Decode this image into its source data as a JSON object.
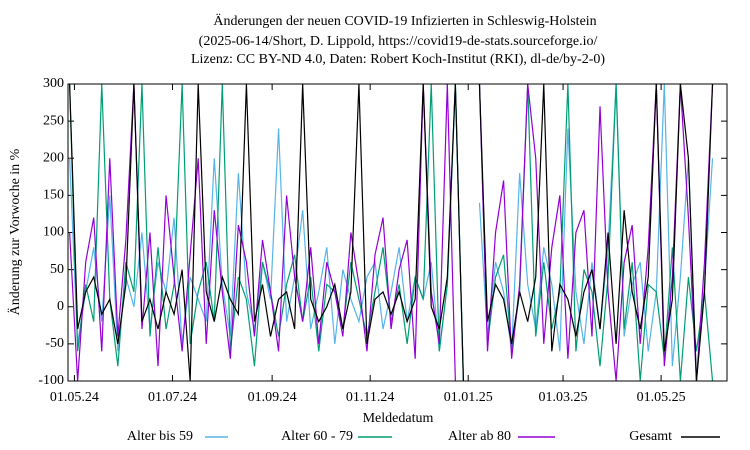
{
  "chart_data": {
    "type": "line",
    "title": [
      "Änderungen der neuen COVID-19 Infizierten in Schleswig-Holstein",
      "(2025-06-14/Short, D. Lippold, https://covid19-de-stats.sourceforge.io/",
      "Lizenz: CC BY-ND 4.0, Daten: Robert Koch-Institut (RKI), dl-de/by-2-0)"
    ],
    "xlabel": "Meldedatum",
    "ylabel": "Änderung zur Vorwoche in %",
    "xlim": [
      "2024-04-27",
      "2025-06-11"
    ],
    "xticks": [
      {
        "value": "2024-05-01",
        "label": "01.05.24"
      },
      {
        "value": "2024-07-01",
        "label": "01.07.24"
      },
      {
        "value": "2024-09-01",
        "label": "01.09.24"
      },
      {
        "value": "2024-11-01",
        "label": "01.11.24"
      },
      {
        "value": "2025-01-01",
        "label": "01.01.25"
      },
      {
        "value": "2025-03-01",
        "label": "01.03.25"
      },
      {
        "value": "2025-05-01",
        "label": "01.05.25"
      }
    ],
    "ylim": [
      -100,
      300
    ],
    "yticks": [
      -100,
      -50,
      0,
      50,
      100,
      150,
      200,
      250,
      300
    ],
    "x": [
      "2024-04-28",
      "2024-05-03",
      "2024-05-08",
      "2024-05-13",
      "2024-05-18",
      "2024-05-23",
      "2024-05-28",
      "2024-06-02",
      "2024-06-07",
      "2024-06-12",
      "2024-06-17",
      "2024-06-22",
      "2024-06-27",
      "2024-07-02",
      "2024-07-07",
      "2024-07-12",
      "2024-07-17",
      "2024-07-22",
      "2024-07-27",
      "2024-08-01",
      "2024-08-06",
      "2024-08-11",
      "2024-08-16",
      "2024-08-21",
      "2024-08-26",
      "2024-08-31",
      "2024-09-05",
      "2024-09-10",
      "2024-09-15",
      "2024-09-20",
      "2024-09-25",
      "2024-09-30",
      "2024-10-05",
      "2024-10-10",
      "2024-10-15",
      "2024-10-20",
      "2024-10-25",
      "2024-10-30",
      "2024-11-04",
      "2024-11-09",
      "2024-11-14",
      "2024-11-19",
      "2024-11-24",
      "2024-11-29",
      "2024-12-04",
      "2024-12-09",
      "2024-12-14",
      "2024-12-19",
      "2024-12-24",
      "2024-12-29",
      "2025-01-03",
      "2025-01-08",
      "2025-01-13",
      "2025-01-18",
      "2025-01-23",
      "2025-01-28",
      "2025-02-02",
      "2025-02-07",
      "2025-02-12",
      "2025-02-17",
      "2025-02-22",
      "2025-02-27",
      "2025-03-04",
      "2025-03-09",
      "2025-03-14",
      "2025-03-19",
      "2025-03-24",
      "2025-03-29",
      "2025-04-03",
      "2025-04-08",
      "2025-04-13",
      "2025-04-18",
      "2025-04-23",
      "2025-04-28",
      "2025-05-03",
      "2025-05-08",
      "2025-05-13",
      "2025-05-18",
      "2025-05-23",
      "2025-05-28",
      "2025-06-02"
    ],
    "series": [
      {
        "name": "Alter bis 59",
        "color": "#56b4e9",
        "values": [
          200,
          -50,
          20,
          80,
          -20,
          150,
          -60,
          40,
          0,
          100,
          -30,
          60,
          20,
          120,
          -50,
          40,
          10,
          -20,
          200,
          30,
          -40,
          180,
          20,
          -30,
          60,
          10,
          240,
          -20,
          40,
          130,
          -30,
          20,
          80,
          -50,
          50,
          10,
          -20,
          40,
          60,
          -30,
          20,
          80,
          -20,
          40,
          10,
          60,
          -60,
          30,
          300,
          -100,
          null,
          140,
          -40,
          60,
          20,
          -60,
          180,
          30,
          -30,
          80,
          30,
          -60,
          240,
          20,
          -50,
          60,
          -30,
          80,
          300,
          -40,
          30,
          60,
          -60,
          20,
          300,
          -80,
          40,
          200,
          -100,
          30,
          200
        ]
      },
      {
        "name": "Alter 60 - 79",
        "color": "#009e73",
        "values": [
          300,
          -60,
          30,
          -20,
          300,
          10,
          -80,
          60,
          20,
          300,
          -40,
          80,
          -30,
          30,
          300,
          -50,
          20,
          60,
          -20,
          300,
          -60,
          40,
          10,
          -80,
          60,
          20,
          -40,
          30,
          70,
          -20,
          40,
          -60,
          30,
          20,
          -30,
          60,
          10,
          -40,
          20,
          80,
          -20,
          30,
          -50,
          40,
          10,
          300,
          -60,
          30,
          300,
          -100,
          null,
          300,
          -50,
          40,
          70,
          -60,
          20,
          300,
          -40,
          60,
          -30,
          20,
          300,
          -60,
          50,
          20,
          -80,
          40,
          300,
          -30,
          60,
          -100,
          30,
          20,
          -70,
          80,
          -100,
          40,
          -60,
          20,
          -100
        ]
      },
      {
        "name": "Alter ab 80",
        "color": "#9400d3",
        "values": [
          100,
          -100,
          60,
          120,
          -60,
          200,
          -40,
          90,
          300,
          -30,
          100,
          -80,
          150,
          40,
          -60,
          70,
          200,
          -50,
          130,
          20,
          -70,
          110,
          60,
          -40,
          90,
          20,
          -60,
          150,
          40,
          -20,
          80,
          -50,
          60,
          20,
          -40,
          100,
          30,
          -60,
          70,
          120,
          -30,
          50,
          90,
          -70,
          300,
          20,
          -50,
          300,
          -100,
          null,
          null,
          300,
          -60,
          100,
          170,
          -70,
          30,
          300,
          200,
          -50,
          80,
          150,
          -70,
          100,
          130,
          -40,
          270,
          20,
          -100,
          60,
          110,
          -50,
          80,
          300,
          -80,
          40,
          300,
          120,
          -100,
          60,
          300
        ]
      },
      {
        "name": "Gesamt",
        "color": "#000000",
        "values": [
          300,
          -30,
          20,
          40,
          -10,
          10,
          -50,
          30,
          300,
          -20,
          10,
          -30,
          20,
          -10,
          50,
          -100,
          300,
          20,
          -20,
          40,
          10,
          -10,
          300,
          -20,
          30,
          -40,
          10,
          20,
          -30,
          300,
          10,
          -20,
          0,
          30,
          -30,
          20,
          300,
          -50,
          10,
          20,
          -10,
          20,
          -20,
          10,
          300,
          0,
          -30,
          40,
          300,
          -100,
          null,
          300,
          -20,
          30,
          10,
          -50,
          20,
          -20,
          40,
          300,
          -60,
          30,
          10,
          -40,
          20,
          50,
          -30,
          100,
          -50,
          130,
          20,
          -30,
          40,
          300,
          -60,
          10,
          300,
          200,
          -100,
          20,
          300
        ]
      }
    ]
  }
}
